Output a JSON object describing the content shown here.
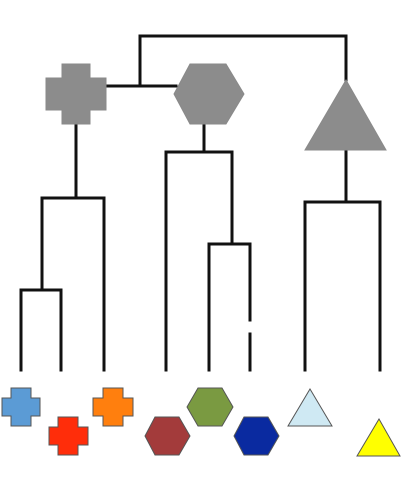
{
  "diagram": {
    "type": "hierarchical-tree",
    "internal_nodes": [
      {
        "id": "cross-node",
        "shape": "cross",
        "color": "#8c8c8c"
      },
      {
        "id": "hexagon-node",
        "shape": "hexagon",
        "color": "#8c8c8c"
      },
      {
        "id": "triangle-node",
        "shape": "triangle",
        "color": "#8c8c8c"
      }
    ],
    "leaves": [
      {
        "id": "leaf-blue-cross",
        "shape": "cross",
        "color": "#5b9bd5"
      },
      {
        "id": "leaf-red-cross",
        "shape": "cross",
        "color": "#ff2d0a"
      },
      {
        "id": "leaf-orange-cross",
        "shape": "cross",
        "color": "#ff7f0e"
      },
      {
        "id": "leaf-brown-hexagon",
        "shape": "hexagon",
        "color": "#a33b3b"
      },
      {
        "id": "leaf-green-hexagon",
        "shape": "hexagon",
        "color": "#7a9a41"
      },
      {
        "id": "leaf-darkblue-hexagon",
        "shape": "hexagon",
        "color": "#0a2aa0"
      },
      {
        "id": "leaf-lightblue-triangle",
        "shape": "triangle",
        "color": "#cfe9f3"
      },
      {
        "id": "leaf-yellow-triangle",
        "shape": "triangle",
        "color": "#ffff00"
      }
    ],
    "line_color": "#111111",
    "background": "#ffffff"
  }
}
